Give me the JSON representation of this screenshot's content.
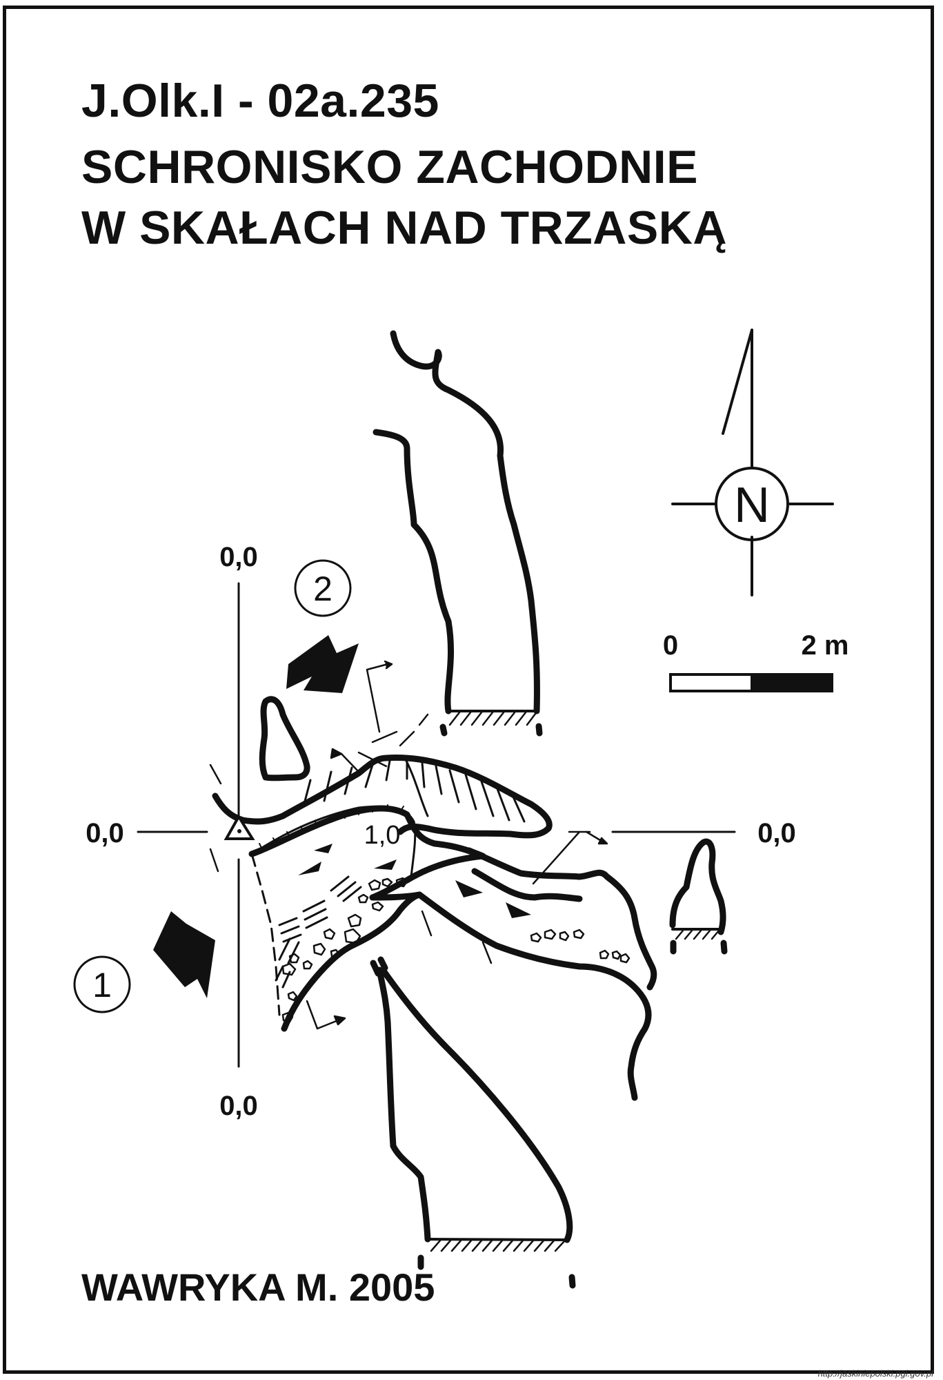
{
  "map": {
    "id_code": "J.Olk.I - 02a.235",
    "name_line1": "SCHRONISKO ZACHODNIE",
    "name_line2": "W SKAŁACH NAD TRZASKĄ",
    "author": "WAWRYKA M. 2005",
    "source_url": "http://jaskiniepolski.pgi.gov.pl"
  },
  "compass": {
    "label": "N",
    "icon": "north-arrow-icon"
  },
  "scale_bar": {
    "min_label": "0",
    "max_label": "2 m",
    "fill_colors": [
      "#ffffff",
      "#111111"
    ]
  },
  "section_markers": {
    "top": "0,0",
    "left": "0,0",
    "right": "0,0",
    "bottom": "0,0"
  },
  "entrances": [
    {
      "number": "1",
      "icon": "entrance-arrow-icon"
    },
    {
      "number": "2",
      "icon": "entrance-arrow-icon"
    }
  ],
  "depth_label": "1,0",
  "colors": {
    "ink": "#111111",
    "paper": "#ffffff"
  }
}
